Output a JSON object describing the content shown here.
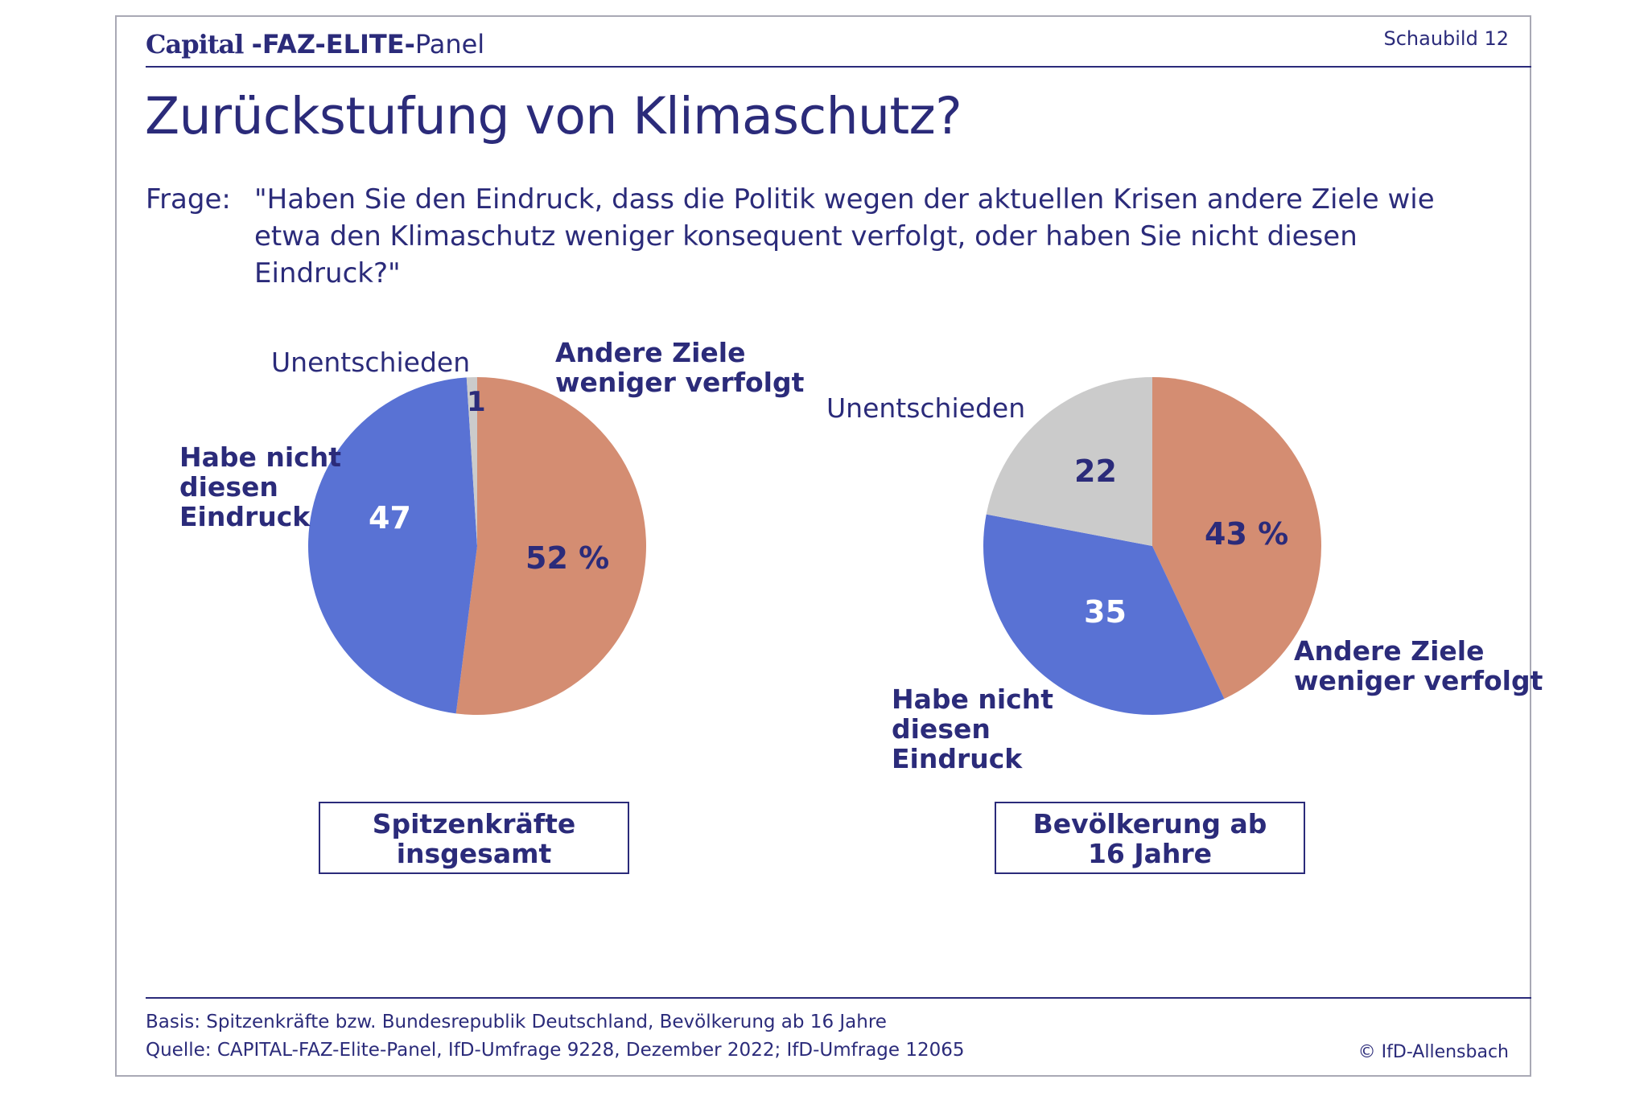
{
  "header": {
    "logo_capital": "Capital",
    "logo_faz": "-FAZ-ELITE-",
    "logo_panel": "Panel",
    "slide_number": "Schaubild 12"
  },
  "title": "Zurückstufung von Klimaschutz?",
  "question": {
    "label": "Frage:",
    "text": "\"Haben Sie den Eindruck, dass die Politik wegen der aktuellen Krisen andere Ziele wie etwa den Klimaschutz weniger konsequent verfolgt, oder haben Sie nicht diesen Eindruck?\""
  },
  "colors": {
    "andere_ziele": "#d48d72",
    "nicht_eindruck": "#5972d4",
    "unentschieden": "#cbcbcb",
    "text": "#2b2b7a"
  },
  "chart_data": [
    {
      "type": "pie",
      "group": "Spitzenkräfte insgesamt",
      "slices": [
        {
          "label": "Andere Ziele weniger verfolgt",
          "value": 52,
          "value_label": "52 %"
        },
        {
          "label": "Habe nicht diesen Eindruck",
          "value": 47,
          "value_label": "47"
        },
        {
          "label": "Unentschieden",
          "value": 1,
          "value_label": "1"
        }
      ]
    },
    {
      "type": "pie",
      "group": "Bevölkerung ab 16 Jahre",
      "slices": [
        {
          "label": "Andere Ziele weniger verfolgt",
          "value": 43,
          "value_label": "43 %"
        },
        {
          "label": "Habe nicht diesen Eindruck",
          "value": 35,
          "value_label": "35"
        },
        {
          "label": "Unentschieden",
          "value": 22,
          "value_label": "22"
        }
      ]
    }
  ],
  "labels": {
    "andere_l1": "Andere Ziele",
    "andere_l2": "weniger verfolgt",
    "nicht_l1": "Habe nicht",
    "nicht_l2": "diesen",
    "nicht_l3": "Eindruck",
    "unentschieden": "Unentschieden",
    "group1_l1": "Spitzenkräfte",
    "group1_l2": "insgesamt",
    "group2_l1": "Bevölkerung ab",
    "group2_l2": "16 Jahre"
  },
  "footer": {
    "basis": "Basis: Spitzenkräfte bzw. Bundesrepublik Deutschland, Bevölkerung ab 16 Jahre",
    "source": "Quelle: CAPITAL-FAZ-Elite-Panel, IfD-Umfrage 9228, Dezember 2022; IfD-Umfrage 12065",
    "copyright": "© IfD-Allensbach"
  }
}
